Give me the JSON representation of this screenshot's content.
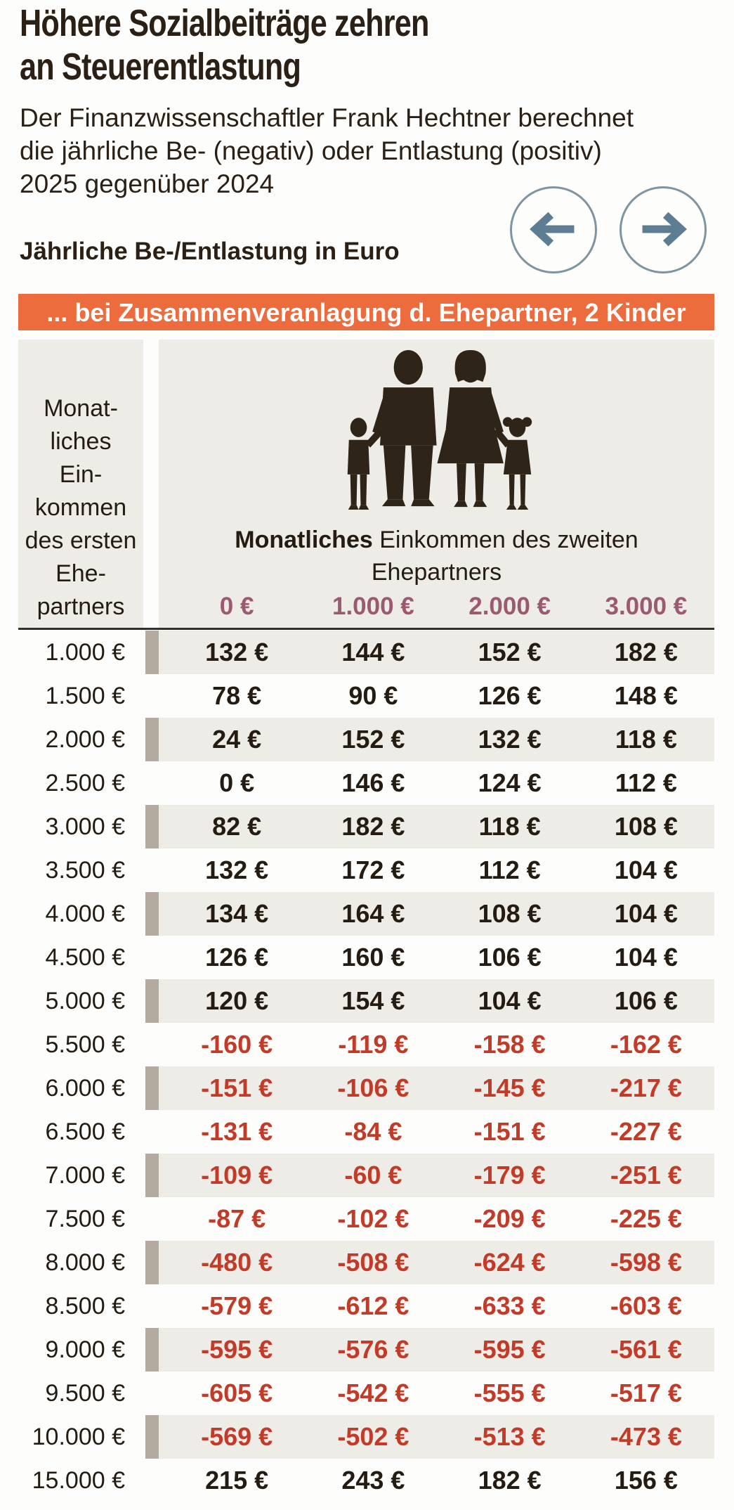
{
  "header": {
    "title_line1": "Höhere Sozialbeiträge zehren",
    "title_line2": "an Steuerentlastung",
    "subtitle_lines": [
      "Der Finanzwissenschaftler Frank Hechtner berechnet",
      "die jährliche Be- (negativ) oder Entlastung (positiv)",
      "2025 gegenüber 2024"
    ],
    "unit_label": "Jährliche Be-/Entlastung in Euro"
  },
  "banner": {
    "text": "... bei Zusammenveranlagung d. Ehepartner, 2 Kinder"
  },
  "icons": {
    "nav_prev": "arrow-left-icon",
    "nav_next": "arrow-right-icon",
    "family": "family-icon"
  },
  "table": {
    "row_axis_lines": [
      "Monat-",
      "liches",
      "Ein-",
      "kommen",
      "des ersten",
      "Ehe-",
      "partners"
    ],
    "col_header_bold": "Monatliches",
    "col_header_rest": " Einkommen des zweiten",
    "col_header_line2": "Ehepartners",
    "columns": [
      "0 €",
      "1.000 €",
      "2.000 €",
      "3.000 €"
    ],
    "rows": [
      {
        "label": "1.000 €",
        "values": [
          "132 €",
          "144 €",
          "152 €",
          "182 €"
        ]
      },
      {
        "label": "1.500 €",
        "values": [
          "78 €",
          "90 €",
          "126 €",
          "148 €"
        ]
      },
      {
        "label": "2.000 €",
        "values": [
          "24 €",
          "152 €",
          "132 €",
          "118 €"
        ]
      },
      {
        "label": "2.500 €",
        "values": [
          "0 €",
          "146 €",
          "124 €",
          "112 €"
        ]
      },
      {
        "label": "3.000 €",
        "values": [
          "82 €",
          "182 €",
          "118 €",
          "108 €"
        ]
      },
      {
        "label": "3.500 €",
        "values": [
          "132 €",
          "172 €",
          "112 €",
          "104 €"
        ]
      },
      {
        "label": "4.000 €",
        "values": [
          "134 €",
          "164 €",
          "108 €",
          "104 €"
        ]
      },
      {
        "label": "4.500 €",
        "values": [
          "126 €",
          "160 €",
          "106 €",
          "104 €"
        ]
      },
      {
        "label": "5.000 €",
        "values": [
          "120 €",
          "154 €",
          "104 €",
          "106 €"
        ]
      },
      {
        "label": "5.500 €",
        "values": [
          "-160 €",
          "-119 €",
          "-158 €",
          "-162 €"
        ]
      },
      {
        "label": "6.000 €",
        "values": [
          "-151 €",
          "-106 €",
          "-145 €",
          "-217 €"
        ]
      },
      {
        "label": "6.500 €",
        "values": [
          "-131 €",
          "-84 €",
          "-151 €",
          "-227 €"
        ]
      },
      {
        "label": "7.000 €",
        "values": [
          "-109 €",
          "-60 €",
          "-179 €",
          "-251 €"
        ]
      },
      {
        "label": "7.500 €",
        "values": [
          "-87 €",
          "-102 €",
          "-209 €",
          "-225 €"
        ]
      },
      {
        "label": "8.000 €",
        "values": [
          "-480 €",
          "-508 €",
          "-624 €",
          "-598 €"
        ]
      },
      {
        "label": "8.500 €",
        "values": [
          "-579 €",
          "-612 €",
          "-633 €",
          "-603 €"
        ]
      },
      {
        "label": "9.000 €",
        "values": [
          "-595 €",
          "-576 €",
          "-595 €",
          "-561 €"
        ]
      },
      {
        "label": "9.500 €",
        "values": [
          "-605 €",
          "-542 €",
          "-555 €",
          "-517 €"
        ]
      },
      {
        "label": "10.000 €",
        "values": [
          "-569 €",
          "-502 €",
          "-513 €",
          "-473 €"
        ]
      },
      {
        "label": "15.000 €",
        "values": [
          "215 €",
          "243 €",
          "182 €",
          "156 €"
        ]
      }
    ]
  },
  "colors": {
    "accent_orange": "#ec6c3e",
    "ink": "#2a2016",
    "column_header_mauve": "#9c5a70",
    "negative_red": "#c23a28",
    "row_gray": "#edece7",
    "row_marker_tan": "#b3aba0",
    "arrow_steel_blue": "#5d7e92"
  },
  "chart_data": {
    "type": "table",
    "title": "Höhere Sozialbeiträge zehren an Steuerentlastung",
    "subtitle": "Der Finanzwissenschaftler Frank Hechtner berechnet die jährliche Be- (negativ) oder Entlastung (positiv) 2025 gegenüber 2024",
    "unit": "Jährliche Be-/Entlastung in Euro",
    "scenario": "bei Zusammenveranlagung d. Ehepartner, 2 Kinder",
    "column_axis": "Monatliches Einkommen des zweiten Ehepartners (€)",
    "row_axis": "Monatliches Einkommen des ersten Ehepartners (€)",
    "columns": [
      0,
      1000,
      2000,
      3000
    ],
    "rows": [
      {
        "income_first_partner": 1000,
        "values": [
          132,
          144,
          152,
          182
        ]
      },
      {
        "income_first_partner": 1500,
        "values": [
          78,
          90,
          126,
          148
        ]
      },
      {
        "income_first_partner": 2000,
        "values": [
          24,
          152,
          132,
          118
        ]
      },
      {
        "income_first_partner": 2500,
        "values": [
          0,
          146,
          124,
          112
        ]
      },
      {
        "income_first_partner": 3000,
        "values": [
          82,
          182,
          118,
          108
        ]
      },
      {
        "income_first_partner": 3500,
        "values": [
          132,
          172,
          112,
          104
        ]
      },
      {
        "income_first_partner": 4000,
        "values": [
          134,
          164,
          108,
          104
        ]
      },
      {
        "income_first_partner": 4500,
        "values": [
          126,
          160,
          106,
          104
        ]
      },
      {
        "income_first_partner": 5000,
        "values": [
          120,
          154,
          104,
          106
        ]
      },
      {
        "income_first_partner": 5500,
        "values": [
          -160,
          -119,
          -158,
          -162
        ]
      },
      {
        "income_first_partner": 6000,
        "values": [
          -151,
          -106,
          -145,
          -217
        ]
      },
      {
        "income_first_partner": 6500,
        "values": [
          -131,
          -84,
          -151,
          -227
        ]
      },
      {
        "income_first_partner": 7000,
        "values": [
          -109,
          -60,
          -179,
          -251
        ]
      },
      {
        "income_first_partner": 7500,
        "values": [
          -87,
          -102,
          -209,
          -225
        ]
      },
      {
        "income_first_partner": 8000,
        "values": [
          -480,
          -508,
          -624,
          -598
        ]
      },
      {
        "income_first_partner": 8500,
        "values": [
          -579,
          -612,
          -633,
          -603
        ]
      },
      {
        "income_first_partner": 9000,
        "values": [
          -595,
          -576,
          -595,
          -561
        ]
      },
      {
        "income_first_partner": 9500,
        "values": [
          -605,
          -542,
          -555,
          -517
        ]
      },
      {
        "income_first_partner": 10000,
        "values": [
          -569,
          -502,
          -513,
          -473
        ]
      },
      {
        "income_first_partner": 15000,
        "values": [
          215,
          243,
          182,
          156
        ]
      }
    ]
  }
}
